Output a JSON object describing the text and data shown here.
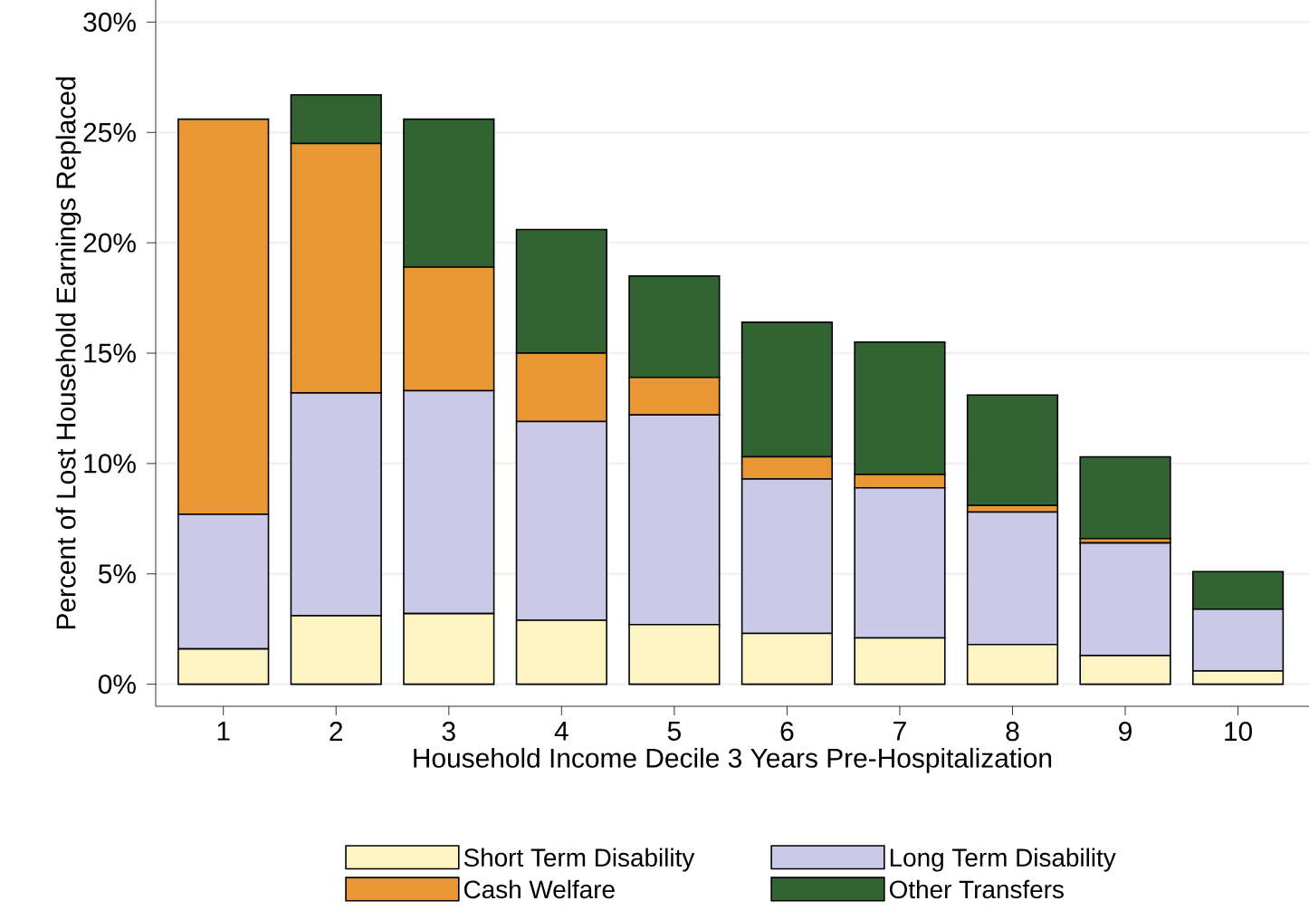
{
  "chart_data": {
    "type": "bar",
    "stacked": true,
    "xlabel": "Household Income Decile 3 Years Pre-Hospitalization",
    "ylabel": "Percent of Lost Household Earnings Replaced",
    "categories": [
      "1",
      "2",
      "3",
      "4",
      "5",
      "6",
      "7",
      "8",
      "9",
      "10"
    ],
    "series": [
      {
        "name": "Short Term Disability",
        "color": "#fef3c3",
        "values": [
          1.6,
          3.1,
          3.2,
          2.9,
          2.7,
          2.3,
          2.1,
          1.8,
          1.3,
          0.6
        ]
      },
      {
        "name": "Long Term Disability",
        "color": "#cac9e8",
        "values": [
          6.1,
          10.1,
          10.1,
          9.0,
          9.5,
          7.0,
          6.8,
          6.0,
          5.1,
          2.8
        ]
      },
      {
        "name": "Cash Welfare",
        "color": "#e99735",
        "values": [
          17.9,
          11.3,
          5.6,
          3.1,
          1.7,
          1.0,
          0.6,
          0.3,
          0.2,
          null
        ]
      },
      {
        "name": "Other Transfers",
        "color": "#336333",
        "values": [
          0,
          2.2,
          6.7,
          5.6,
          4.6,
          6.1,
          6.0,
          5.0,
          3.7,
          1.7
        ]
      }
    ],
    "ylim": [
      -1,
      31
    ],
    "yticks": [
      {
        "value": 0,
        "label": "0%"
      },
      {
        "value": 5,
        "label": "5%"
      },
      {
        "value": 10,
        "label": "10%"
      },
      {
        "value": 15,
        "label": "15%"
      },
      {
        "value": 20,
        "label": "20%"
      },
      {
        "value": 25,
        "label": "25%"
      },
      {
        "value": 30,
        "label": "30%"
      }
    ],
    "grid": "y",
    "legend": "bottom"
  }
}
